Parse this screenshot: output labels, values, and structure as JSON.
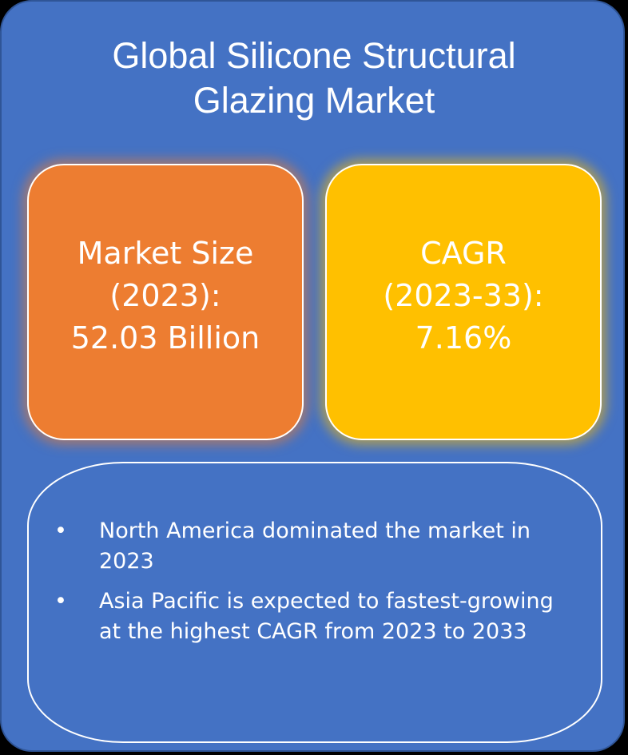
{
  "title": "Global Silicone Structural\nGlazing Market",
  "market_size_box": {
    "text": "Market Size\n(2023):\n52.03 Billion",
    "color": "#ED7D31"
  },
  "cagr_box": {
    "text": "CAGR\n(2023-33):\n7.16%",
    "color": "#FFC000"
  },
  "background_color": "#4472C4",
  "bullets": {
    "marker": "•",
    "items": [
      "North America dominated the market in 2023",
      "Asia Pacific is expected to fastest-growing at the highest CAGR from 2023 to 2033"
    ]
  }
}
